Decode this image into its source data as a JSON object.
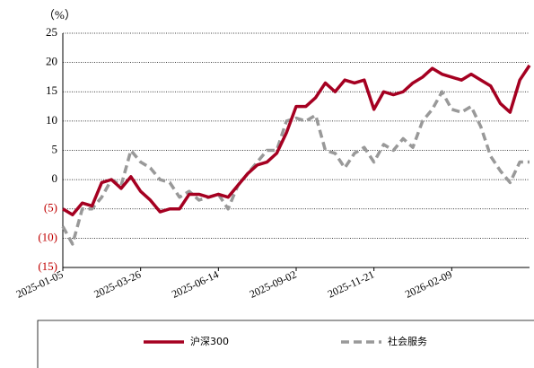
{
  "chart_data": {
    "type": "line",
    "y_unit_label": "（%）",
    "x": [
      "2025-01-05",
      "2025-01-15",
      "2025-01-25",
      "2025-02-04",
      "2025-02-14",
      "2025-02-24",
      "2025-03-06",
      "2025-03-16",
      "2025-03-26",
      "2025-04-05",
      "2025-04-15",
      "2025-04-25",
      "2025-05-05",
      "2025-05-15",
      "2025-05-25",
      "2025-06-04",
      "2025-06-14",
      "2025-06-24",
      "2025-07-04",
      "2025-07-14",
      "2025-07-24",
      "2025-08-03",
      "2025-08-13",
      "2025-08-23",
      "2025-09-02",
      "2025-09-12",
      "2025-09-22",
      "2025-10-02",
      "2025-10-12",
      "2025-10-22",
      "2025-11-01",
      "2025-11-11",
      "2025-11-21",
      "2025-12-01",
      "2025-12-11",
      "2025-12-21",
      "2025-12-31",
      "2026-01-10",
      "2026-01-20",
      "2026-01-30",
      "2026-02-09",
      "2026-02-19",
      "2026-03-01",
      "2026-03-11",
      "2026-03-21",
      "2026-03-31",
      "2026-04-10",
      "2026-04-20",
      "2026-04-30"
    ],
    "series": [
      {
        "name": "沪深300",
        "color": "#a50021",
        "dash": false,
        "values": [
          -5,
          -6,
          -4,
          -4.5,
          -0.5,
          0,
          -1.5,
          0.5,
          -2,
          -3.5,
          -5.5,
          -5,
          -5,
          -2.5,
          -2.5,
          -3,
          -2.5,
          -3,
          -1,
          1,
          2.5,
          3,
          4.5,
          8,
          12.5,
          12.5,
          14,
          16.5,
          15,
          17,
          16.5,
          17,
          12,
          15,
          14.5,
          15,
          16.5,
          17.5,
          19,
          18,
          17.5,
          17,
          18,
          17,
          16,
          13,
          11.5,
          17,
          19.5
        ]
      },
      {
        "name": "社会服务",
        "color": "#999999",
        "dash": true,
        "values": [
          -8,
          -11,
          -5,
          -5,
          -3,
          0,
          -1,
          5,
          3,
          2,
          0,
          -0.5,
          -3,
          -2,
          -3.5,
          -3,
          -2.5,
          -5,
          -1,
          1,
          3,
          5,
          5,
          10,
          10.5,
          10,
          11,
          5,
          4.5,
          2,
          4.5,
          5.5,
          3,
          6,
          5,
          7,
          5.5,
          10,
          12,
          15,
          12,
          11.5,
          12.5,
          9,
          4,
          1.5,
          -0.5,
          3,
          3
        ]
      }
    ],
    "xlim": [
      "2025-01-05",
      "2026-04-30"
    ],
    "xticks": [
      "2025-01-05",
      "2025-03-26",
      "2025-06-14",
      "2025-09-02",
      "2025-11-21",
      "2026-02-09"
    ],
    "ylim": [
      -15,
      25
    ],
    "yticks": [
      {
        "value": -15,
        "label": "(15)"
      },
      {
        "value": -10,
        "label": "(10)"
      },
      {
        "value": -5,
        "label": "(5)"
      },
      0,
      5,
      10,
      15,
      20,
      25
    ],
    "grid": true,
    "legend": "bottom"
  }
}
